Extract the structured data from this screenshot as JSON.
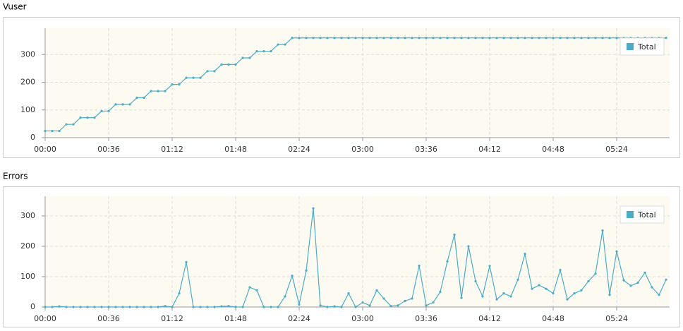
{
  "chart_data": [
    {
      "type": "line",
      "title": "Vuser",
      "x": [
        0,
        4,
        8,
        12,
        16,
        20,
        24,
        28,
        32,
        36,
        40,
        44,
        48,
        52,
        56,
        60,
        64,
        68,
        72,
        76,
        80,
        84,
        88,
        92,
        96,
        100,
        104,
        108,
        112,
        116,
        120,
        124,
        128,
        132,
        136,
        140,
        144,
        148,
        152,
        156,
        160,
        164,
        168,
        172,
        176,
        180,
        184,
        188,
        192,
        196,
        200,
        204,
        208,
        212,
        216,
        220,
        224,
        228,
        232,
        236,
        240,
        244,
        248,
        252,
        256,
        260,
        264,
        268,
        272,
        276,
        280,
        284,
        288,
        292,
        296,
        300,
        304,
        308,
        312,
        316,
        320,
        324,
        328,
        332,
        336,
        340,
        344,
        348,
        352
      ],
      "series": [
        {
          "name": "Total",
          "color": "#4bacc6",
          "values": [
            24,
            24,
            24,
            48,
            48,
            72,
            72,
            72,
            96,
            96,
            120,
            120,
            120,
            144,
            144,
            168,
            168,
            168,
            192,
            192,
            216,
            216,
            216,
            240,
            240,
            264,
            264,
            264,
            288,
            288,
            312,
            312,
            312,
            336,
            336,
            360,
            360,
            360,
            360,
            360,
            360,
            360,
            360,
            360,
            360,
            360,
            360,
            360,
            360,
            360,
            360,
            360,
            360,
            360,
            360,
            360,
            360,
            360,
            360,
            360,
            360,
            360,
            360,
            360,
            360,
            360,
            360,
            360,
            360,
            360,
            360,
            360,
            360,
            360,
            360,
            360,
            360,
            360,
            360,
            360,
            360,
            360,
            360,
            360,
            360,
            360,
            360,
            360,
            360
          ]
        }
      ],
      "xlim": [
        0,
        354
      ],
      "xticks": [
        {
          "value": 0,
          "label": "00:00"
        },
        {
          "value": 36,
          "label": "00:36"
        },
        {
          "value": 72,
          "label": "01:12"
        },
        {
          "value": 108,
          "label": "01:48"
        },
        {
          "value": 144,
          "label": "02:24"
        },
        {
          "value": 180,
          "label": "03:00"
        },
        {
          "value": 216,
          "label": "03:36"
        },
        {
          "value": 252,
          "label": "04:12"
        },
        {
          "value": 288,
          "label": "04:48"
        },
        {
          "value": 324,
          "label": "05:24"
        }
      ],
      "ylim": [
        0,
        395
      ],
      "yticks": [
        0,
        100,
        200,
        300
      ],
      "grid": true,
      "legend": "upper right"
    },
    {
      "type": "line",
      "title": "Errors",
      "x": [
        0,
        4,
        8,
        12,
        16,
        20,
        24,
        28,
        32,
        36,
        40,
        44,
        48,
        52,
        56,
        60,
        64,
        68,
        72,
        76,
        80,
        84,
        88,
        92,
        96,
        100,
        104,
        108,
        112,
        116,
        120,
        124,
        128,
        132,
        136,
        140,
        144,
        148,
        152,
        156,
        160,
        164,
        168,
        172,
        176,
        180,
        184,
        188,
        192,
        196,
        200,
        204,
        208,
        212,
        216,
        220,
        224,
        228,
        232,
        236,
        240,
        244,
        248,
        252,
        256,
        260,
        264,
        268,
        272,
        276,
        280,
        284,
        288,
        292,
        296,
        300,
        304,
        308,
        312,
        316,
        320,
        324,
        328,
        332,
        336,
        340,
        344,
        348,
        352
      ],
      "series": [
        {
          "name": "Total",
          "color": "#4bacc6",
          "values": [
            0,
            0,
            2,
            0,
            0,
            0,
            0,
            0,
            0,
            0,
            0,
            0,
            0,
            0,
            0,
            0,
            0,
            3,
            0,
            45,
            148,
            0,
            0,
            0,
            0,
            2,
            3,
            0,
            0,
            65,
            55,
            0,
            0,
            0,
            35,
            103,
            8,
            120,
            325,
            5,
            0,
            2,
            0,
            45,
            0,
            15,
            5,
            55,
            28,
            3,
            5,
            20,
            28,
            136,
            5,
            15,
            50,
            150,
            238,
            30,
            200,
            85,
            35,
            135,
            25,
            45,
            35,
            90,
            175,
            60,
            72,
            60,
            45,
            122,
            25,
            45,
            55,
            85,
            110,
            252,
            40,
            183,
            88,
            70,
            80,
            113,
            65,
            40,
            90
          ]
        }
      ],
      "xlim": [
        0,
        354
      ],
      "xticks": [
        {
          "value": 0,
          "label": "00:00"
        },
        {
          "value": 36,
          "label": "00:36"
        },
        {
          "value": 72,
          "label": "01:12"
        },
        {
          "value": 108,
          "label": "01:48"
        },
        {
          "value": 144,
          "label": "02:24"
        },
        {
          "value": 180,
          "label": "03:00"
        },
        {
          "value": 216,
          "label": "03:36"
        },
        {
          "value": 252,
          "label": "04:12"
        },
        {
          "value": 288,
          "label": "04:48"
        },
        {
          "value": 324,
          "label": "05:24"
        }
      ],
      "ylim": [
        0,
        365
      ],
      "yticks": [
        0,
        100,
        200,
        300
      ],
      "grid": true,
      "legend": "upper right"
    }
  ]
}
